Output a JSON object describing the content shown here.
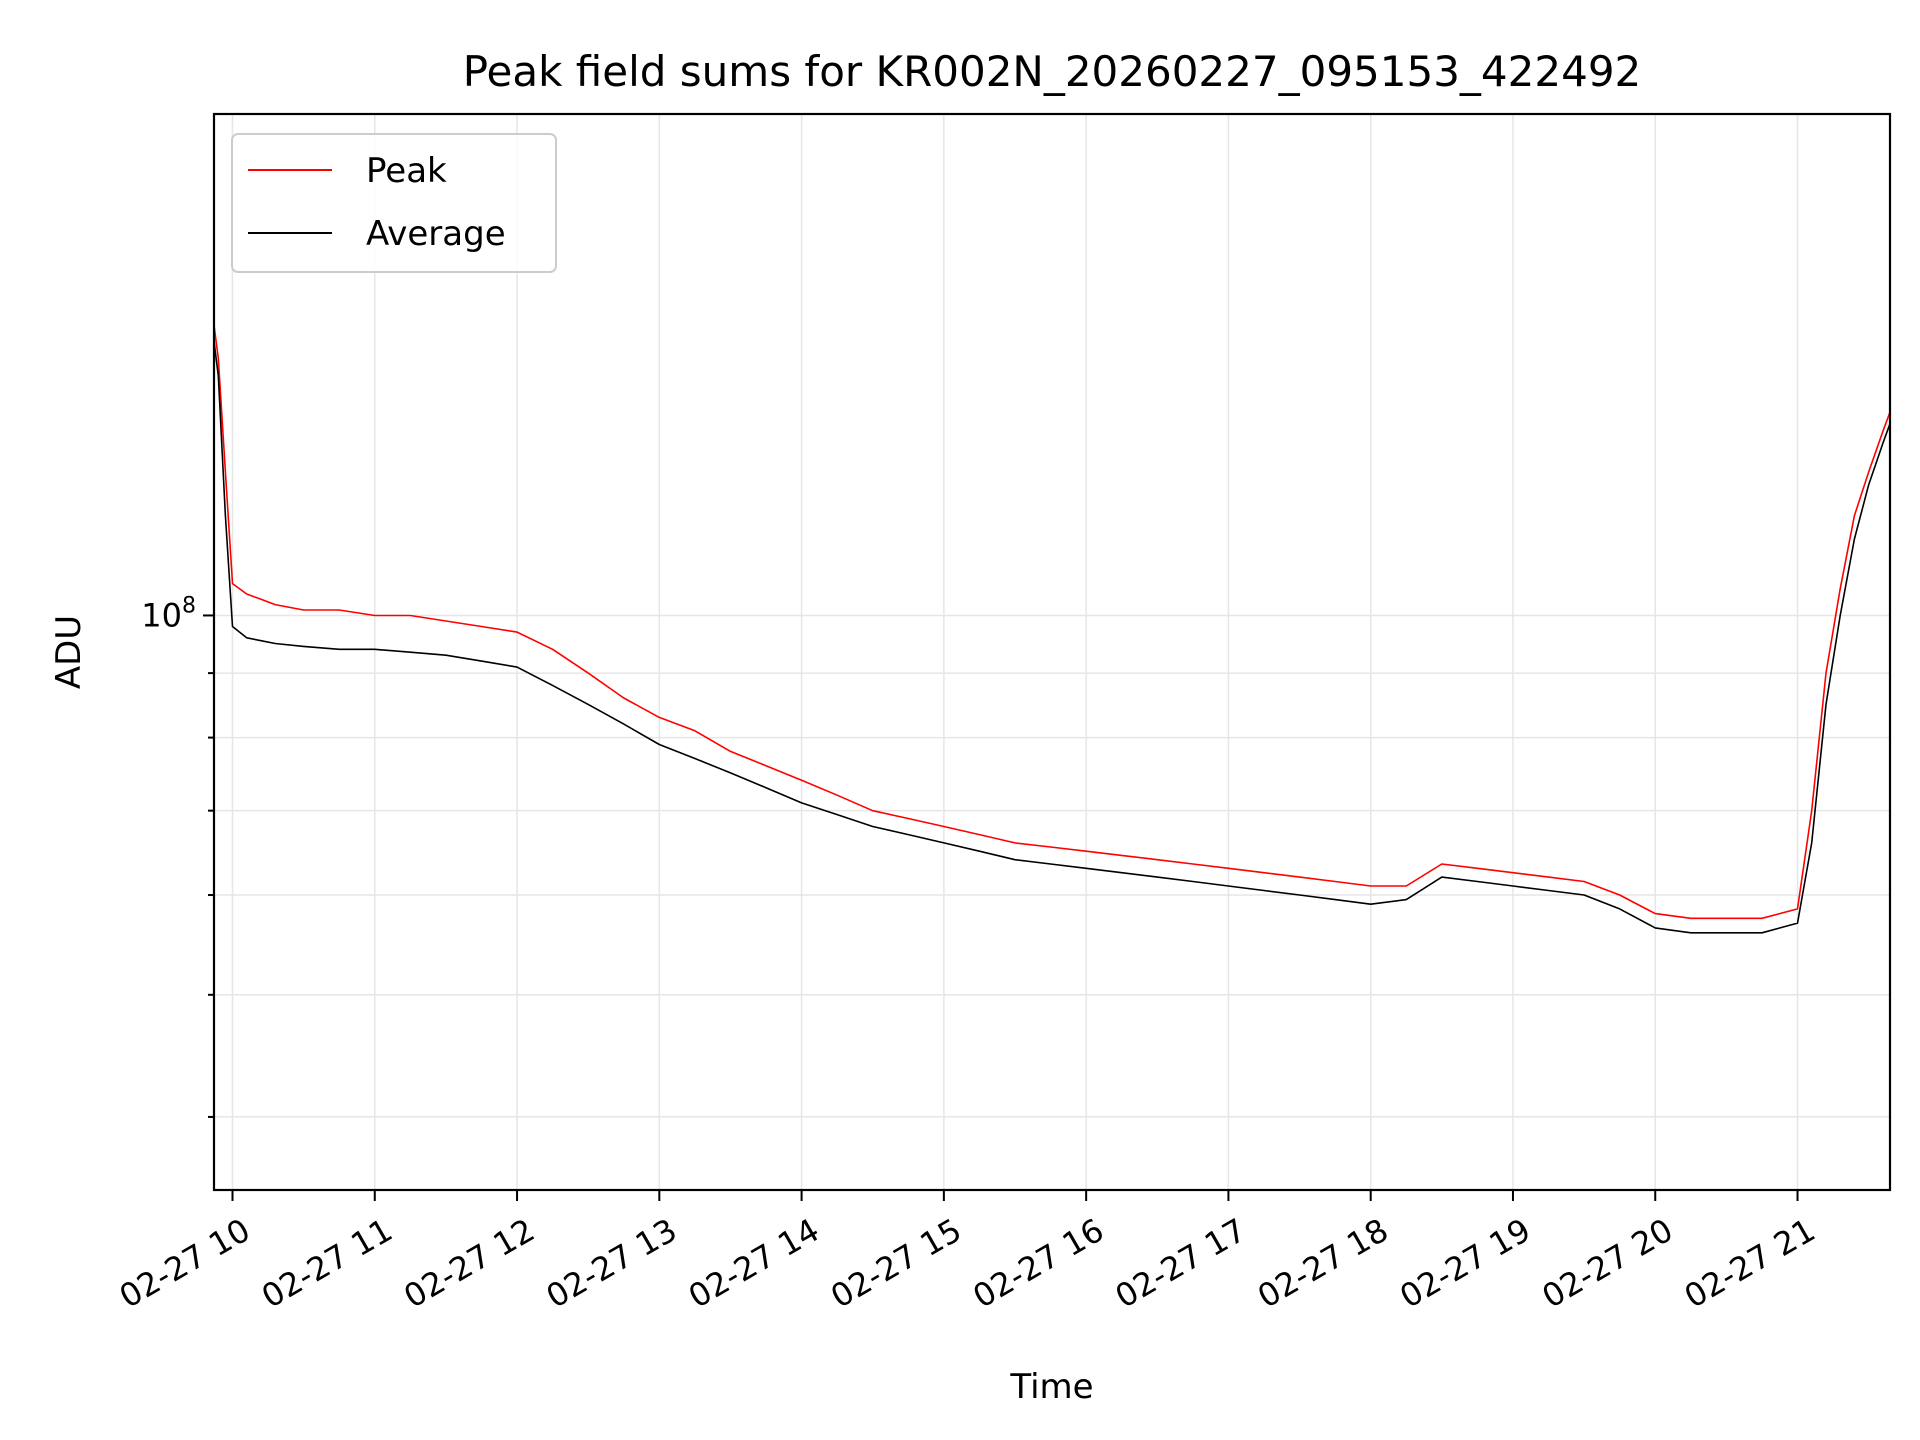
{
  "chart_data": {
    "type": "line",
    "title": "Peak field sums for KR002N_20260227_095153_422492",
    "xlabel": "Time",
    "ylabel": "ADU",
    "yscale": "log",
    "ylim": [
      35000000,
      250000000
    ],
    "xlim_hours": [
      9.87,
      21.65
    ],
    "grid": true,
    "legend": {
      "location": "upper-left",
      "entries": [
        "Peak",
        "Average"
      ]
    },
    "x_ticks": [
      {
        "value": 10,
        "label": "02-27 10"
      },
      {
        "value": 11,
        "label": "02-27 11"
      },
      {
        "value": 12,
        "label": "02-27 12"
      },
      {
        "value": 13,
        "label": "02-27 13"
      },
      {
        "value": 14,
        "label": "02-27 14"
      },
      {
        "value": 15,
        "label": "02-27 15"
      },
      {
        "value": 16,
        "label": "02-27 16"
      },
      {
        "value": 17,
        "label": "02-27 17"
      },
      {
        "value": 18,
        "label": "02-27 18"
      },
      {
        "value": 19,
        "label": "02-27 19"
      },
      {
        "value": 20,
        "label": "02-27 20"
      },
      {
        "value": 21,
        "label": "02-27 21"
      }
    ],
    "y_ticks": [
      {
        "value": 100000000,
        "label_base": "10",
        "label_exp": "8"
      }
    ],
    "y_minor_ticks": [
      40000000,
      50000000,
      60000000,
      70000000,
      80000000,
      90000000
    ],
    "series": [
      {
        "name": "Peak",
        "color": "#ff0000",
        "x": [
          9.87,
          9.9,
          9.95,
          10.0,
          10.1,
          10.2,
          10.3,
          10.5,
          10.75,
          11.0,
          11.25,
          11.5,
          11.75,
          12.0,
          12.25,
          12.5,
          12.75,
          13.0,
          13.25,
          13.5,
          13.75,
          14.0,
          14.25,
          14.5,
          14.75,
          15.0,
          15.25,
          15.5,
          15.75,
          16.0,
          16.25,
          16.5,
          16.75,
          17.0,
          17.25,
          17.5,
          17.75,
          18.0,
          18.25,
          18.5,
          18.75,
          19.0,
          19.25,
          19.5,
          19.75,
          20.0,
          20.25,
          20.5,
          20.75,
          21.0,
          21.1,
          21.2,
          21.3,
          21.4,
          21.5,
          21.6,
          21.65
        ],
        "y": [
          170000000,
          160000000,
          130000000,
          106000000,
          104000000,
          103000000,
          102000000,
          101000000,
          101000000,
          100000000,
          100000000,
          99000000,
          98000000,
          97000000,
          94000000,
          90000000,
          86000000,
          83000000,
          81000000,
          78000000,
          76000000,
          74000000,
          72000000,
          70000000,
          69000000,
          68000000,
          67000000,
          66000000,
          65500000,
          65000000,
          64500000,
          64000000,
          63500000,
          63000000,
          62500000,
          62000000,
          61500000,
          61000000,
          61000000,
          63500000,
          63000000,
          62500000,
          62000000,
          61500000,
          60000000,
          58000000,
          57500000,
          57500000,
          57500000,
          58500000,
          70000000,
          90000000,
          105000000,
          120000000,
          130000000,
          140000000,
          145000000
        ]
      },
      {
        "name": "Average",
        "color": "#000000",
        "x": [
          9.87,
          9.9,
          9.95,
          10.0,
          10.1,
          10.2,
          10.3,
          10.5,
          10.75,
          11.0,
          11.25,
          11.5,
          11.75,
          12.0,
          12.25,
          12.5,
          12.75,
          13.0,
          13.25,
          13.5,
          13.75,
          14.0,
          14.25,
          14.5,
          14.75,
          15.0,
          15.25,
          15.5,
          15.75,
          16.0,
          16.25,
          16.5,
          16.75,
          17.0,
          17.25,
          17.5,
          17.75,
          18.0,
          18.25,
          18.5,
          18.75,
          19.0,
          19.25,
          19.5,
          19.75,
          20.0,
          20.25,
          20.5,
          20.75,
          21.0,
          21.1,
          21.2,
          21.3,
          21.4,
          21.5,
          21.6,
          21.65
        ],
        "y": [
          165000000,
          155000000,
          120000000,
          98000000,
          96000000,
          95500000,
          95000000,
          94500000,
          94000000,
          94000000,
          93500000,
          93000000,
          92000000,
          91000000,
          88000000,
          85000000,
          82000000,
          79000000,
          77000000,
          75000000,
          73000000,
          71000000,
          69500000,
          68000000,
          67000000,
          66000000,
          65000000,
          64000000,
          63500000,
          63000000,
          62500000,
          62000000,
          61500000,
          61000000,
          60500000,
          60000000,
          59500000,
          59000000,
          59500000,
          62000000,
          61500000,
          61000000,
          60500000,
          60000000,
          58500000,
          56500000,
          56000000,
          56000000,
          56000000,
          57000000,
          66000000,
          85000000,
          100000000,
          115000000,
          127000000,
          137000000,
          142000000
        ]
      }
    ]
  }
}
